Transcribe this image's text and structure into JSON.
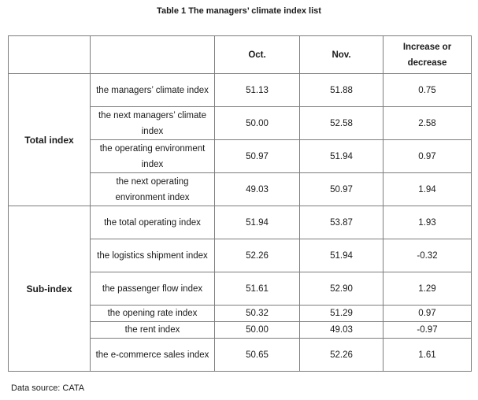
{
  "caption": "Table 1 The managers’ climate index list",
  "columns": [
    "",
    "",
    "Oct.",
    "Nov.",
    "Increase or decrease"
  ],
  "groups": [
    {
      "label": "Total index",
      "rows": [
        {
          "name": "the managers’ climate index",
          "oct": "51.13",
          "nov": "51.88",
          "change": "0.75"
        },
        {
          "name": "the next managers’ climate index",
          "oct": "50.00",
          "nov": "52.58",
          "change": "2.58"
        },
        {
          "name": "the operating environment index",
          "oct": "50.97",
          "nov": "51.94",
          "change": "0.97"
        },
        {
          "name": "the next operating environment index",
          "oct": "49.03",
          "nov": "50.97",
          "change": "1.94"
        }
      ]
    },
    {
      "label": "Sub-index",
      "rows": [
        {
          "name": "the total operating index",
          "oct": "51.94",
          "nov": "53.87",
          "change": "1.93"
        },
        {
          "name": "the logistics shipment index",
          "oct": "52.26",
          "nov": "51.94",
          "change": "-0.32"
        },
        {
          "name": "the passenger flow index",
          "oct": "51.61",
          "nov": "52.90",
          "change": "1.29"
        },
        {
          "name": "the opening rate index",
          "oct": "50.32",
          "nov": "51.29",
          "change": "0.97"
        },
        {
          "name": "the rent index",
          "oct": "50.00",
          "nov": "49.03",
          "change": "-0.97"
        },
        {
          "name": "the e-commerce sales index",
          "oct": "50.65",
          "nov": "52.26",
          "change": "1.61"
        }
      ]
    }
  ],
  "source": "Data source: CATA"
}
